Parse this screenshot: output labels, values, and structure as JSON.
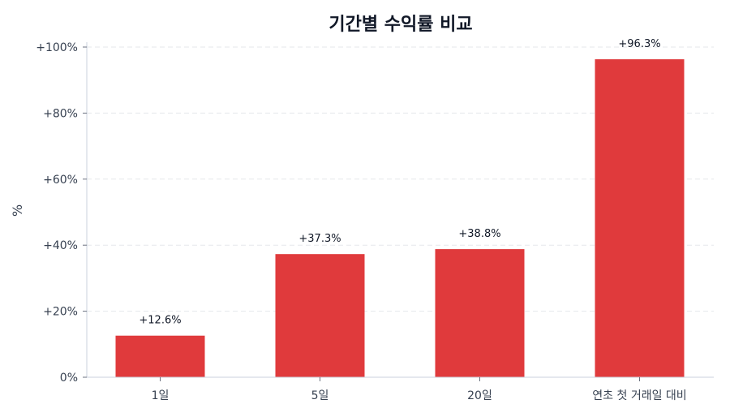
{
  "chart_data": {
    "type": "bar",
    "title": "기간별 수익률 비교",
    "xlabel": "",
    "ylabel": "%",
    "categories": [
      "1일",
      "5일",
      "20일",
      "연초 첫 거래일 대비"
    ],
    "values": [
      12.6,
      37.3,
      38.8,
      96.3
    ],
    "value_labels": [
      "+12.6%",
      "+37.3%",
      "+38.8%",
      "+96.3%"
    ],
    "ylim": [
      0,
      100
    ],
    "yticks": [
      0,
      20,
      40,
      60,
      80,
      100
    ],
    "ytick_labels": [
      "0%",
      "+20%",
      "+40%",
      "+60%",
      "+80%",
      "+100%"
    ],
    "grid": {
      "y": true,
      "style": "dashed"
    },
    "legend": null,
    "bar_color": "#E03A3C"
  },
  "colors": {
    "bar": "#E03A3C",
    "axis": "#CBD2DC",
    "grid": "#E5E7EB",
    "text": "#374151",
    "title": "#111827"
  }
}
